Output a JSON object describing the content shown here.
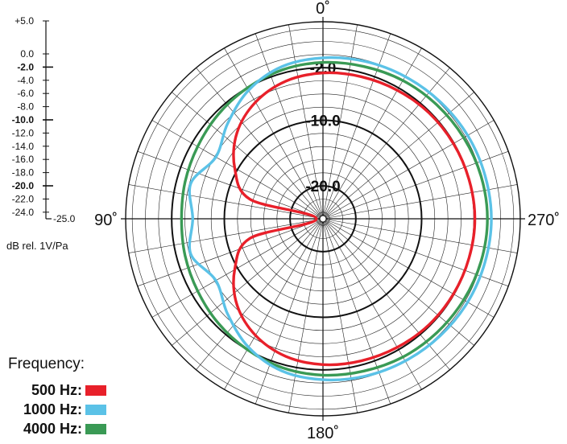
{
  "chart_data": {
    "type": "polar",
    "angle_labels": [
      {
        "angle": 0,
        "label": "0˚"
      },
      {
        "angle": 90,
        "label": "90˚"
      },
      {
        "angle": 180,
        "label": "180˚"
      },
      {
        "angle": 270,
        "label": "270˚"
      }
    ],
    "r_axis": {
      "min_db": -25,
      "max_db": 5,
      "unit": "dB rel. 1V/Pa",
      "ticks": [
        {
          "label": "+5.0",
          "value": 5,
          "bold": false,
          "major": false
        },
        {
          "label": "0.0",
          "value": 0,
          "bold": false,
          "major": false
        },
        {
          "label": "-2.0",
          "value": -2,
          "bold": true,
          "major": true
        },
        {
          "label": "-4.0",
          "value": -4,
          "bold": false,
          "major": false
        },
        {
          "label": "-6.0",
          "value": -6,
          "bold": false,
          "major": false
        },
        {
          "label": "-8.0",
          "value": -8,
          "bold": false,
          "major": false
        },
        {
          "label": "-10.0",
          "value": -10,
          "bold": true,
          "major": true
        },
        {
          "label": "-12.0",
          "value": -12,
          "bold": false,
          "major": false
        },
        {
          "label": "-14.0",
          "value": -14,
          "bold": false,
          "major": false
        },
        {
          "label": "-16.0",
          "value": -16,
          "bold": false,
          "major": false
        },
        {
          "label": "-18.0",
          "value": -18,
          "bold": false,
          "major": false
        },
        {
          "label": "-20.0",
          "value": -20,
          "bold": true,
          "major": true
        },
        {
          "label": "-22.0",
          "value": -22,
          "bold": false,
          "major": false
        },
        {
          "label": "-24.0",
          "value": -24,
          "bold": false,
          "major": false
        },
        {
          "label": "-25.0",
          "value": -25,
          "bold": false,
          "major": false
        }
      ],
      "ring_labels": [
        {
          "label": "-2.0",
          "value": -2
        },
        {
          "label": "-10.0",
          "value": -10
        },
        {
          "label": "-20.0",
          "value": -20
        }
      ]
    },
    "series": [
      {
        "name": "500 Hz",
        "color": "#e8202a",
        "angles": [
          0,
          15,
          30,
          45,
          60,
          75,
          90,
          105,
          120,
          135,
          150,
          165,
          180,
          195,
          210,
          225,
          240,
          255,
          270,
          285,
          300,
          315,
          330,
          345,
          360
        ],
        "values": [
          -2.8,
          -3.3,
          -4.5,
          -6.5,
          -9.5,
          -13.5,
          -24,
          -13.5,
          -9.5,
          -6.5,
          -4.5,
          -3.3,
          -2.8,
          -2.6,
          -2.4,
          -2.2,
          -2.1,
          -2.0,
          -1.9,
          -2.0,
          -2.1,
          -2.2,
          -2.4,
          -2.6,
          -2.8
        ]
      },
      {
        "name": "1000 Hz",
        "color": "#5bc2e7",
        "angles": [
          0,
          15,
          30,
          45,
          60,
          75,
          90,
          105,
          120,
          135,
          150,
          165,
          180,
          195,
          210,
          225,
          240,
          255,
          270,
          285,
          300,
          315,
          330,
          345,
          360
        ],
        "values": [
          -0.5,
          -1.0,
          -2.4,
          -4.5,
          -6.2,
          -4.2,
          -5.2,
          -4.2,
          -6.2,
          -4.5,
          -2.4,
          -1.0,
          -0.5,
          -0.2,
          0.0,
          0.2,
          0.4,
          0.5,
          0.6,
          0.5,
          0.4,
          0.2,
          0.0,
          -0.2,
          -0.5
        ]
      },
      {
        "name": "4000 Hz",
        "color": "#3a9a55",
        "angles": [
          0,
          15,
          30,
          45,
          60,
          75,
          90,
          105,
          120,
          135,
          150,
          165,
          180,
          195,
          210,
          225,
          240,
          255,
          270,
          285,
          300,
          315,
          330,
          345,
          360
        ],
        "values": [
          -1.2,
          -1.5,
          -2.0,
          -2.5,
          -3.0,
          -3.3,
          -3.5,
          -3.3,
          -3.0,
          -2.5,
          -2.0,
          -1.5,
          -1.2,
          -1.0,
          -0.7,
          -0.5,
          -0.3,
          -0.1,
          0.0,
          -0.1,
          -0.3,
          -0.5,
          -0.7,
          -1.0,
          -1.2
        ]
      }
    ],
    "grid": true,
    "legend_position": "bottom-left"
  },
  "legend": {
    "title": "Frequency:",
    "items": [
      {
        "label": "500 Hz:",
        "color": "#e8202a"
      },
      {
        "label": "1000 Hz:",
        "color": "#5bc2e7"
      },
      {
        "label": "4000 Hz:",
        "color": "#3a9a55"
      }
    ]
  }
}
